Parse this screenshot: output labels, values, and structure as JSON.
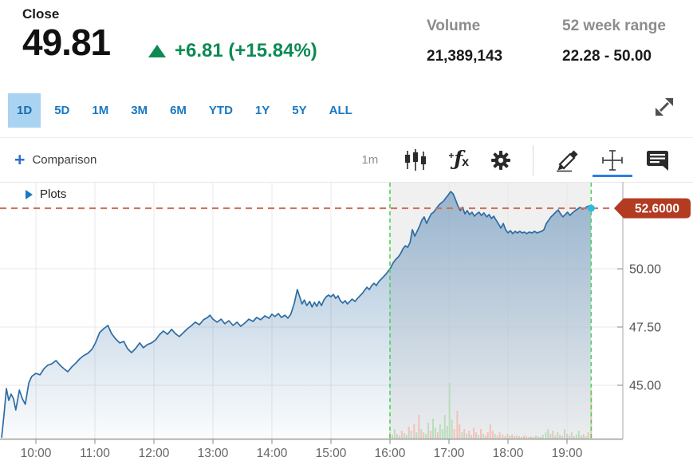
{
  "header": {
    "close_label": "Close",
    "price": "49.81",
    "change": "+6.81 (+15.84%)",
    "volume_label": "Volume",
    "volume_value": "21,389,143",
    "range_label": "52 week range",
    "range_value": "22.28 - 50.00"
  },
  "tabs": {
    "items": [
      "1D",
      "5D",
      "1M",
      "3M",
      "6M",
      "YTD",
      "1Y",
      "5Y",
      "ALL"
    ],
    "selected": "1D"
  },
  "toolbar": {
    "comparison_label": "Comparison",
    "interval": "1m",
    "tools": [
      "candlestick-style",
      "indicators-fx",
      "settings",
      "draw",
      "crosshair",
      "comments"
    ],
    "active_tool": "crosshair"
  },
  "chart": {
    "plots_label": "Plots"
  },
  "colors": {
    "up_green": "#0d8a53",
    "tab_blue": "#1878c2",
    "tab_selected_bg": "#aad3f2",
    "accent_blue": "#2e7de9",
    "line_blue": "#2e6ca4",
    "area_blue": "#2f6ca4",
    "flag_red": "#b23b22",
    "dashed_red": "#c9705a",
    "session_green": "#45d654",
    "session_gray": "#f0f0f0",
    "dot_cyan": "#2fb9ea",
    "vol_up": "#b7dcba",
    "vol_down": "#f3bdb5"
  },
  "chart_data": {
    "type": "area",
    "title": "Intraday price (1-minute interval) with after-hours session",
    "x_ticks": [
      {
        "t": 10,
        "label": "10:00"
      },
      {
        "t": 11,
        "label": "11:00"
      },
      {
        "t": 12,
        "label": "12:00"
      },
      {
        "t": 13,
        "label": "13:00"
      },
      {
        "t": 14,
        "label": "14:00"
      },
      {
        "t": 15,
        "label": "15:00"
      },
      {
        "t": 16,
        "label": "16:00"
      },
      {
        "t": 17,
        "label": "17:00"
      },
      {
        "t": 18,
        "label": "18:00"
      },
      {
        "t": 19,
        "label": "19:00"
      }
    ],
    "y_ticks": [
      {
        "v": 50.0,
        "label": "50.00"
      },
      {
        "v": 47.5,
        "label": "47.50"
      },
      {
        "v": 45.0,
        "label": "45.00"
      }
    ],
    "ylim": [
      42.6,
      53.7
    ],
    "xlim_hours": [
      9.39,
      19.95
    ],
    "grid": true,
    "reference_line_value": 52.6,
    "reference_line_label": "52.6000",
    "last_price": 52.6,
    "after_hours": {
      "start": 16.0,
      "end": 19.41
    },
    "series": [
      {
        "name": "price",
        "points": [
          [
            9.42,
            42.77
          ],
          [
            9.46,
            43.73
          ],
          [
            9.5,
            44.86
          ],
          [
            9.54,
            44.35
          ],
          [
            9.58,
            44.62
          ],
          [
            9.62,
            44.42
          ],
          [
            9.66,
            43.94
          ],
          [
            9.72,
            44.79
          ],
          [
            9.77,
            44.42
          ],
          [
            9.82,
            44.18
          ],
          [
            9.88,
            45.1
          ],
          [
            9.93,
            45.38
          ],
          [
            10.0,
            45.51
          ],
          [
            10.07,
            45.45
          ],
          [
            10.14,
            45.72
          ],
          [
            10.2,
            45.86
          ],
          [
            10.27,
            45.92
          ],
          [
            10.34,
            46.06
          ],
          [
            10.41,
            45.86
          ],
          [
            10.47,
            45.72
          ],
          [
            10.54,
            45.58
          ],
          [
            10.61,
            45.79
          ],
          [
            10.68,
            45.96
          ],
          [
            10.74,
            46.13
          ],
          [
            10.81,
            46.27
          ],
          [
            10.88,
            46.37
          ],
          [
            10.95,
            46.54
          ],
          [
            11.01,
            46.82
          ],
          [
            11.08,
            47.26
          ],
          [
            11.15,
            47.43
          ],
          [
            11.22,
            47.57
          ],
          [
            11.28,
            47.23
          ],
          [
            11.35,
            46.99
          ],
          [
            11.42,
            46.82
          ],
          [
            11.49,
            46.88
          ],
          [
            11.55,
            46.58
          ],
          [
            11.62,
            46.4
          ],
          [
            11.69,
            46.58
          ],
          [
            11.76,
            46.82
          ],
          [
            11.82,
            46.61
          ],
          [
            11.89,
            46.75
          ],
          [
            11.96,
            46.82
          ],
          [
            12.03,
            46.95
          ],
          [
            12.09,
            47.16
          ],
          [
            12.16,
            47.33
          ],
          [
            12.23,
            47.19
          ],
          [
            12.3,
            47.4
          ],
          [
            12.36,
            47.23
          ],
          [
            12.43,
            47.09
          ],
          [
            12.5,
            47.26
          ],
          [
            12.57,
            47.43
          ],
          [
            12.64,
            47.57
          ],
          [
            12.7,
            47.71
          ],
          [
            12.77,
            47.6
          ],
          [
            12.84,
            47.81
          ],
          [
            12.91,
            47.91
          ],
          [
            12.95,
            48.01
          ],
          [
            13.0,
            47.84
          ],
          [
            13.07,
            47.71
          ],
          [
            13.14,
            47.84
          ],
          [
            13.2,
            47.64
          ],
          [
            13.27,
            47.77
          ],
          [
            13.34,
            47.57
          ],
          [
            13.41,
            47.71
          ],
          [
            13.47,
            47.53
          ],
          [
            13.54,
            47.67
          ],
          [
            13.61,
            47.84
          ],
          [
            13.68,
            47.74
          ],
          [
            13.74,
            47.91
          ],
          [
            13.81,
            47.81
          ],
          [
            13.88,
            47.98
          ],
          [
            13.95,
            47.88
          ],
          [
            14.0,
            48.05
          ],
          [
            14.05,
            47.95
          ],
          [
            14.11,
            48.08
          ],
          [
            14.16,
            47.91
          ],
          [
            14.22,
            48.01
          ],
          [
            14.27,
            47.88
          ],
          [
            14.32,
            48.05
          ],
          [
            14.38,
            48.53
          ],
          [
            14.43,
            49.11
          ],
          [
            14.47,
            48.8
          ],
          [
            14.51,
            48.49
          ],
          [
            14.55,
            48.66
          ],
          [
            14.59,
            48.42
          ],
          [
            14.64,
            48.6
          ],
          [
            14.68,
            48.36
          ],
          [
            14.72,
            48.56
          ],
          [
            14.76,
            48.39
          ],
          [
            14.8,
            48.6
          ],
          [
            14.84,
            48.42
          ],
          [
            14.88,
            48.66
          ],
          [
            14.92,
            48.8
          ],
          [
            14.96,
            48.87
          ],
          [
            15.0,
            48.8
          ],
          [
            15.04,
            48.9
          ],
          [
            15.08,
            48.73
          ],
          [
            15.12,
            48.84
          ],
          [
            15.16,
            48.63
          ],
          [
            15.2,
            48.53
          ],
          [
            15.24,
            48.63
          ],
          [
            15.28,
            48.49
          ],
          [
            15.32,
            48.6
          ],
          [
            15.36,
            48.7
          ],
          [
            15.41,
            48.6
          ],
          [
            15.45,
            48.73
          ],
          [
            15.49,
            48.84
          ],
          [
            15.53,
            48.94
          ],
          [
            15.57,
            49.08
          ],
          [
            15.61,
            49.21
          ],
          [
            15.65,
            49.11
          ],
          [
            15.69,
            49.28
          ],
          [
            15.73,
            49.38
          ],
          [
            15.77,
            49.28
          ],
          [
            15.81,
            49.45
          ],
          [
            15.85,
            49.55
          ],
          [
            15.89,
            49.66
          ],
          [
            15.93,
            49.76
          ],
          [
            15.97,
            49.9
          ],
          [
            16.01,
            50.03
          ],
          [
            16.05,
            50.24
          ],
          [
            16.09,
            50.38
          ],
          [
            16.14,
            50.51
          ],
          [
            16.18,
            50.65
          ],
          [
            16.22,
            50.86
          ],
          [
            16.26,
            50.99
          ],
          [
            16.3,
            50.92
          ],
          [
            16.34,
            51.13
          ],
          [
            16.38,
            51.68
          ],
          [
            16.42,
            51.4
          ],
          [
            16.46,
            51.61
          ],
          [
            16.5,
            51.82
          ],
          [
            16.54,
            52.09
          ],
          [
            16.58,
            52.23
          ],
          [
            16.62,
            51.95
          ],
          [
            16.66,
            52.16
          ],
          [
            16.7,
            52.36
          ],
          [
            16.74,
            52.43
          ],
          [
            16.78,
            52.57
          ],
          [
            16.82,
            52.71
          ],
          [
            16.86,
            52.81
          ],
          [
            16.91,
            52.91
          ],
          [
            16.95,
            53.05
          ],
          [
            16.99,
            53.18
          ],
          [
            17.03,
            53.32
          ],
          [
            17.07,
            53.22
          ],
          [
            17.11,
            52.98
          ],
          [
            17.15,
            52.71
          ],
          [
            17.19,
            52.5
          ],
          [
            17.23,
            52.64
          ],
          [
            17.27,
            52.36
          ],
          [
            17.31,
            52.5
          ],
          [
            17.35,
            52.33
          ],
          [
            17.39,
            52.43
          ],
          [
            17.43,
            52.26
          ],
          [
            17.47,
            52.36
          ],
          [
            17.51,
            52.43
          ],
          [
            17.55,
            52.29
          ],
          [
            17.59,
            52.4
          ],
          [
            17.64,
            52.23
          ],
          [
            17.68,
            52.33
          ],
          [
            17.72,
            52.16
          ],
          [
            17.76,
            52.26
          ],
          [
            17.8,
            52.09
          ],
          [
            17.84,
            51.92
          ],
          [
            17.88,
            51.75
          ],
          [
            17.92,
            51.95
          ],
          [
            17.96,
            51.68
          ],
          [
            18.0,
            51.54
          ],
          [
            18.04,
            51.64
          ],
          [
            18.08,
            51.51
          ],
          [
            18.12,
            51.61
          ],
          [
            18.16,
            51.54
          ],
          [
            18.2,
            51.61
          ],
          [
            18.24,
            51.54
          ],
          [
            18.28,
            51.58
          ],
          [
            18.32,
            51.51
          ],
          [
            18.36,
            51.58
          ],
          [
            18.41,
            51.54
          ],
          [
            18.45,
            51.61
          ],
          [
            18.49,
            51.54
          ],
          [
            18.53,
            51.58
          ],
          [
            18.57,
            51.61
          ],
          [
            18.61,
            51.68
          ],
          [
            18.65,
            51.95
          ],
          [
            18.69,
            52.09
          ],
          [
            18.73,
            52.23
          ],
          [
            18.77,
            52.33
          ],
          [
            18.81,
            52.43
          ],
          [
            18.85,
            52.53
          ],
          [
            18.89,
            52.36
          ],
          [
            18.93,
            52.23
          ],
          [
            18.97,
            52.33
          ],
          [
            19.01,
            52.43
          ],
          [
            19.05,
            52.29
          ],
          [
            19.09,
            52.4
          ],
          [
            19.14,
            52.5
          ],
          [
            19.18,
            52.57
          ],
          [
            19.22,
            52.64
          ],
          [
            19.26,
            52.57
          ],
          [
            19.3,
            52.6
          ],
          [
            19.34,
            52.67
          ],
          [
            19.38,
            52.71
          ],
          [
            19.41,
            52.6
          ]
        ]
      }
    ],
    "volume_bars": [
      [
        16.0,
        8,
        "d"
      ],
      [
        16.04,
        5,
        "u"
      ],
      [
        16.08,
        12,
        "u"
      ],
      [
        16.12,
        6,
        "d"
      ],
      [
        16.16,
        4,
        "u"
      ],
      [
        16.2,
        10,
        "d"
      ],
      [
        16.24,
        7,
        "u"
      ],
      [
        16.28,
        5,
        "u"
      ],
      [
        16.32,
        15,
        "d"
      ],
      [
        16.36,
        10,
        "u"
      ],
      [
        16.41,
        18,
        "d"
      ],
      [
        16.45,
        8,
        "u"
      ],
      [
        16.49,
        30,
        "d"
      ],
      [
        16.53,
        12,
        "u"
      ],
      [
        16.57,
        8,
        "d"
      ],
      [
        16.61,
        6,
        "u"
      ],
      [
        16.65,
        20,
        "u"
      ],
      [
        16.69,
        10,
        "d"
      ],
      [
        16.73,
        25,
        "u"
      ],
      [
        16.77,
        14,
        "u"
      ],
      [
        16.81,
        8,
        "d"
      ],
      [
        16.85,
        18,
        "u"
      ],
      [
        16.89,
        12,
        "u"
      ],
      [
        16.93,
        30,
        "u"
      ],
      [
        16.97,
        16,
        "u"
      ],
      [
        17.01,
        70,
        "u"
      ],
      [
        17.05,
        24,
        "u"
      ],
      [
        17.09,
        12,
        "d"
      ],
      [
        17.14,
        35,
        "d"
      ],
      [
        17.18,
        18,
        "d"
      ],
      [
        17.22,
        8,
        "u"
      ],
      [
        17.26,
        12,
        "d"
      ],
      [
        17.3,
        6,
        "u"
      ],
      [
        17.34,
        10,
        "d"
      ],
      [
        17.38,
        5,
        "u"
      ],
      [
        17.42,
        14,
        "d"
      ],
      [
        17.46,
        8,
        "d"
      ],
      [
        17.5,
        5,
        "u"
      ],
      [
        17.54,
        12,
        "d"
      ],
      [
        17.58,
        6,
        "u"
      ],
      [
        17.62,
        4,
        "d"
      ],
      [
        17.66,
        8,
        "d"
      ],
      [
        17.7,
        18,
        "d"
      ],
      [
        17.74,
        10,
        "d"
      ],
      [
        17.78,
        6,
        "u"
      ],
      [
        17.82,
        4,
        "d"
      ],
      [
        17.86,
        8,
        "d"
      ],
      [
        17.91,
        5,
        "d"
      ],
      [
        17.95,
        3,
        "u"
      ],
      [
        17.99,
        6,
        "d"
      ],
      [
        18.03,
        4,
        "u"
      ],
      [
        18.07,
        5,
        "d"
      ],
      [
        18.11,
        3,
        "d"
      ],
      [
        18.15,
        4,
        "u"
      ],
      [
        18.19,
        3,
        "d"
      ],
      [
        18.23,
        2,
        "u"
      ],
      [
        18.27,
        4,
        "d"
      ],
      [
        18.31,
        3,
        "d"
      ],
      [
        18.35,
        2,
        "u"
      ],
      [
        18.39,
        3,
        "d"
      ],
      [
        18.43,
        2,
        "d"
      ],
      [
        18.47,
        4,
        "u"
      ],
      [
        18.51,
        3,
        "u"
      ],
      [
        18.55,
        2,
        "d"
      ],
      [
        18.59,
        5,
        "u"
      ],
      [
        18.64,
        8,
        "u"
      ],
      [
        18.68,
        12,
        "u"
      ],
      [
        18.72,
        6,
        "u"
      ],
      [
        18.76,
        10,
        "d"
      ],
      [
        18.8,
        4,
        "u"
      ],
      [
        18.84,
        8,
        "u"
      ],
      [
        18.88,
        5,
        "d"
      ],
      [
        18.92,
        3,
        "u"
      ],
      [
        18.96,
        12,
        "u"
      ],
      [
        19.0,
        6,
        "d"
      ],
      [
        19.04,
        4,
        "u"
      ],
      [
        19.08,
        8,
        "u"
      ],
      [
        19.12,
        3,
        "d"
      ],
      [
        19.16,
        5,
        "u"
      ],
      [
        19.2,
        10,
        "u"
      ],
      [
        19.24,
        4,
        "d"
      ],
      [
        19.28,
        6,
        "u"
      ],
      [
        19.32,
        3,
        "d"
      ],
      [
        19.36,
        8,
        "d"
      ],
      [
        19.41,
        62,
        "d"
      ]
    ]
  }
}
